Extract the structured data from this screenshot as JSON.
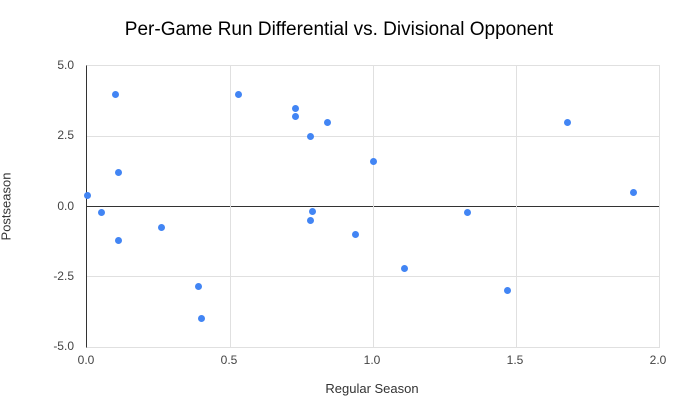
{
  "chart_data": {
    "type": "scatter",
    "title": "Per-Game Run Differential vs. Divisional Opponent",
    "xlabel": "Regular Season",
    "ylabel": "Postseason",
    "xlim": [
      0.0,
      2.0
    ],
    "ylim": [
      -5.0,
      5.0
    ],
    "grid": true,
    "legend_position": "none",
    "x_ticks": [
      0.0,
      0.5,
      1.0,
      1.5,
      2.0
    ],
    "x_tick_labels": [
      "0.0",
      "0.5",
      "1.0",
      "1.5",
      "2.0"
    ],
    "y_ticks": [
      5.0,
      2.5,
      0.0,
      -2.5,
      -5.0
    ],
    "y_tick_labels": [
      "5.0",
      "2.5",
      "0.0",
      "-2.5",
      "-5.0"
    ],
    "series": [
      {
        "name": "points",
        "points": [
          [
            0.0,
            0.4
          ],
          [
            0.05,
            -0.2
          ],
          [
            0.1,
            4.0
          ],
          [
            0.11,
            1.2
          ],
          [
            0.11,
            -1.2
          ],
          [
            0.26,
            -0.75
          ],
          [
            0.39,
            -2.85
          ],
          [
            0.4,
            -4.0
          ],
          [
            0.53,
            4.0
          ],
          [
            0.73,
            3.5
          ],
          [
            0.73,
            3.2
          ],
          [
            0.78,
            2.5
          ],
          [
            0.84,
            3.0
          ],
          [
            0.79,
            -0.17
          ],
          [
            0.78,
            -0.5
          ],
          [
            0.94,
            -1.0
          ],
          [
            1.0,
            1.6
          ],
          [
            1.11,
            -2.2
          ],
          [
            1.33,
            -0.2
          ],
          [
            1.47,
            -3.0
          ],
          [
            1.68,
            3.0
          ],
          [
            1.91,
            0.5
          ]
        ]
      }
    ],
    "colors": {
      "point": "#4285f4",
      "gridline": "#e0e0e0",
      "axis_line": "#333333",
      "tick_label": "#444444",
      "title": "#000000",
      "axis_title": "#333333",
      "background": "#ffffff"
    }
  }
}
